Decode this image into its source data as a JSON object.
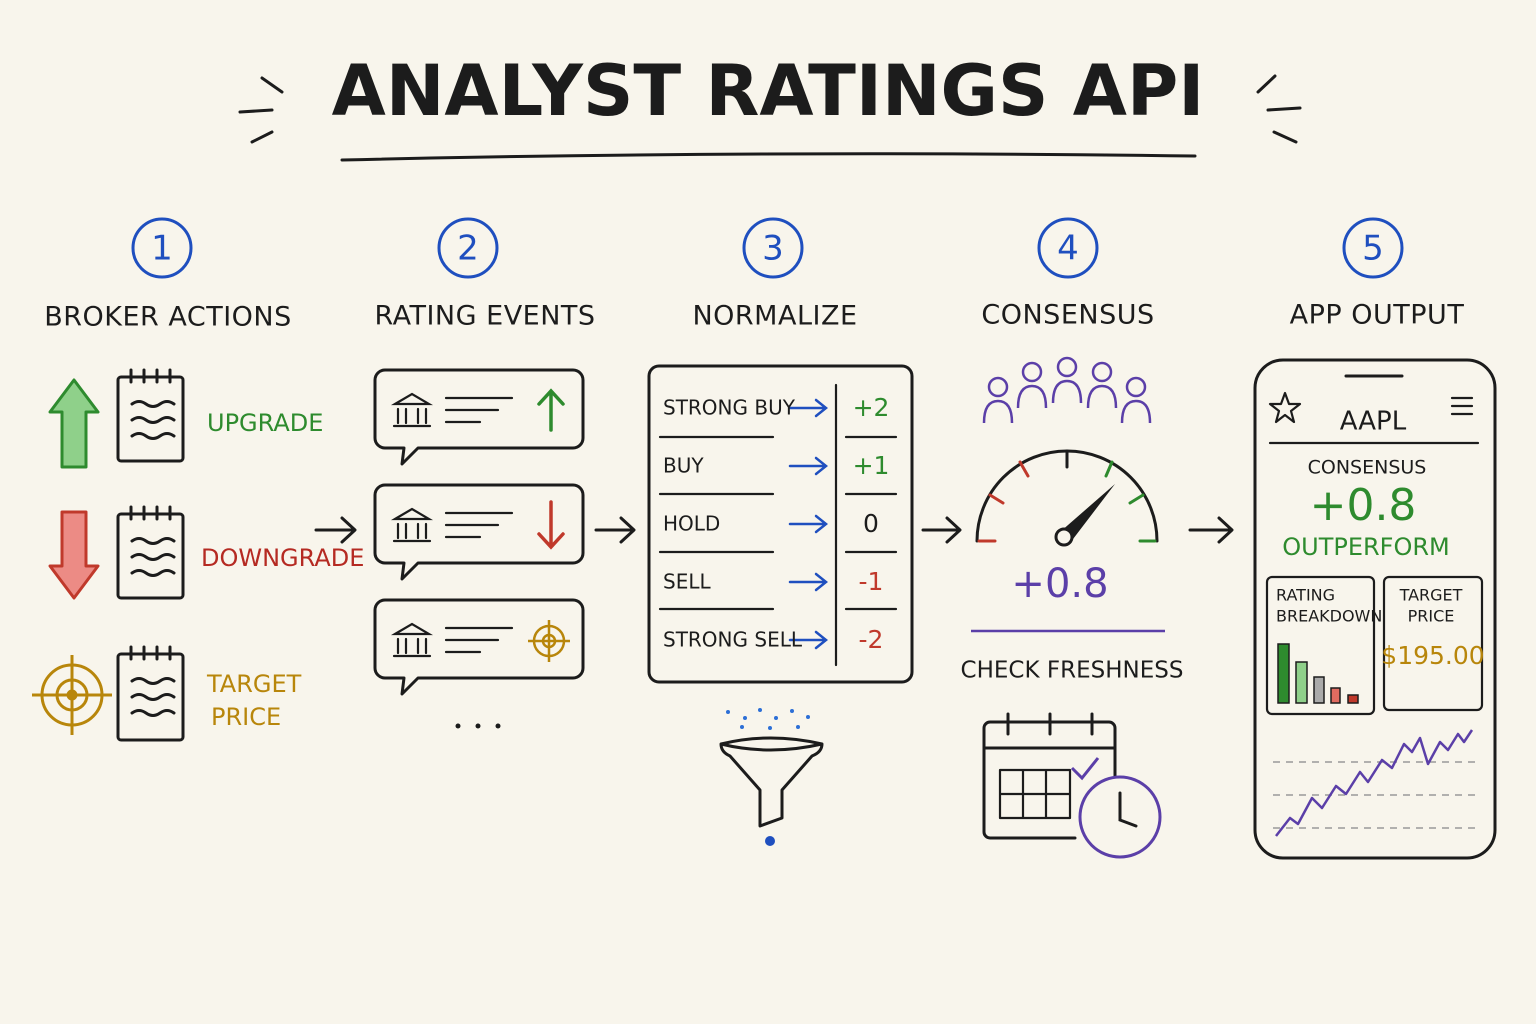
{
  "title": "ANALYST RATINGS API",
  "steps": [
    {
      "number": "1",
      "label": "BROKER ACTIONS",
      "items": [
        [
          "UPGRADE"
        ],
        [
          "DOWNGRADE"
        ],
        [
          "TARGET",
          "PRICE"
        ]
      ]
    },
    {
      "number": "2",
      "label": "RATING EVENTS"
    },
    {
      "number": "3",
      "label": "NORMALIZE",
      "rows": [
        {
          "rating": "STRONG BUY",
          "score": "+2"
        },
        {
          "rating": "BUY",
          "score": "+1"
        },
        {
          "rating": "HOLD",
          "score": "0"
        },
        {
          "rating": "SELL",
          "score": "-1"
        },
        {
          "rating": "STRONG SELL",
          "score": "-2"
        }
      ]
    },
    {
      "number": "4",
      "label": "CONSENSUS",
      "score": "+0.8",
      "check": "CHECK FRESHNESS"
    },
    {
      "number": "5",
      "label": "APP OUTPUT",
      "app": {
        "ticker": "AAPL",
        "consensus_label": "CONSENSUS",
        "score": "+0.8",
        "rating": "OUTPERFORM",
        "breakdown_label": [
          "RATING",
          "BREAKDOWN"
        ],
        "target_label": [
          "TARGET",
          "PRICE"
        ],
        "target_value": "$195.00"
      }
    }
  ]
}
